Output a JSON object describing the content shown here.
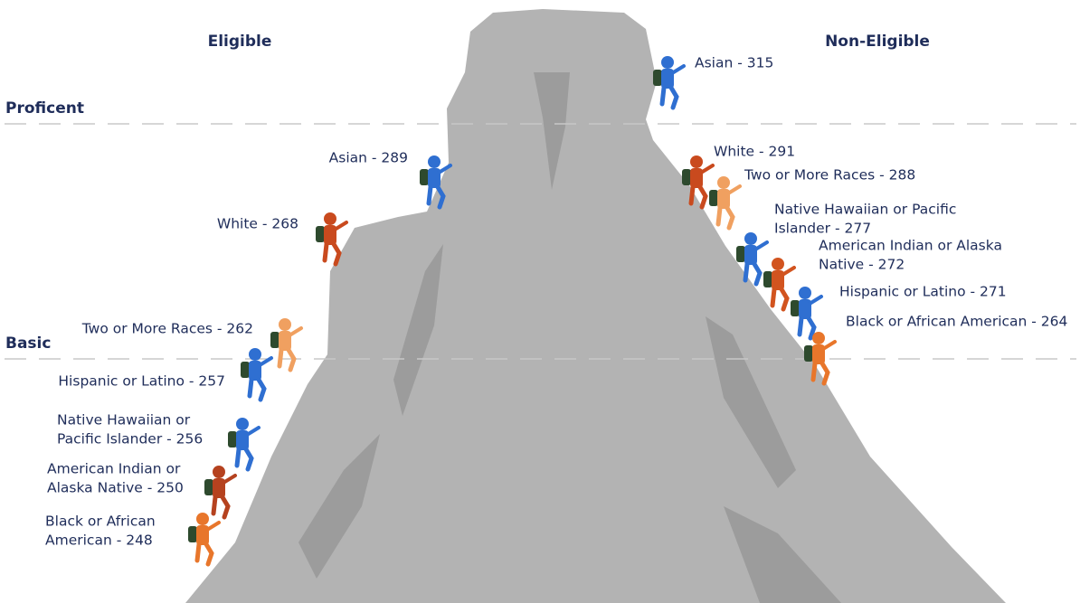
{
  "header": {
    "left": "Eligible",
    "right": "Non-Eligible"
  },
  "levels": [
    "Proficent",
    "Basic"
  ],
  "labels": {
    "eligible": [
      {
        "lines": [
          "Asian - 289"
        ]
      },
      {
        "lines": [
          "White - 268"
        ]
      },
      {
        "lines": [
          "Two or More Races - 262"
        ]
      },
      {
        "lines": [
          "Hispanic or Latino - 257"
        ]
      },
      {
        "lines": [
          "Native Hawaiian or",
          "Pacific Islander - 256"
        ]
      },
      {
        "lines": [
          "American Indian or",
          "Alaska Native - 250"
        ]
      },
      {
        "lines": [
          "Black or African",
          "American - 248"
        ]
      }
    ],
    "non_eligible": [
      {
        "lines": [
          "Asian - 315"
        ]
      },
      {
        "lines": [
          "White - 291"
        ]
      },
      {
        "lines": [
          "Two or More Races - 288"
        ]
      },
      {
        "lines": [
          "Native Hawaiian or Pacific",
          "Islander - 277"
        ]
      },
      {
        "lines": [
          "American Indian or Alaska",
          "Native - 272"
        ]
      },
      {
        "lines": [
          "Hispanic or Latino - 271"
        ]
      },
      {
        "lines": [
          "Black or African American - 264"
        ]
      }
    ]
  }
}
